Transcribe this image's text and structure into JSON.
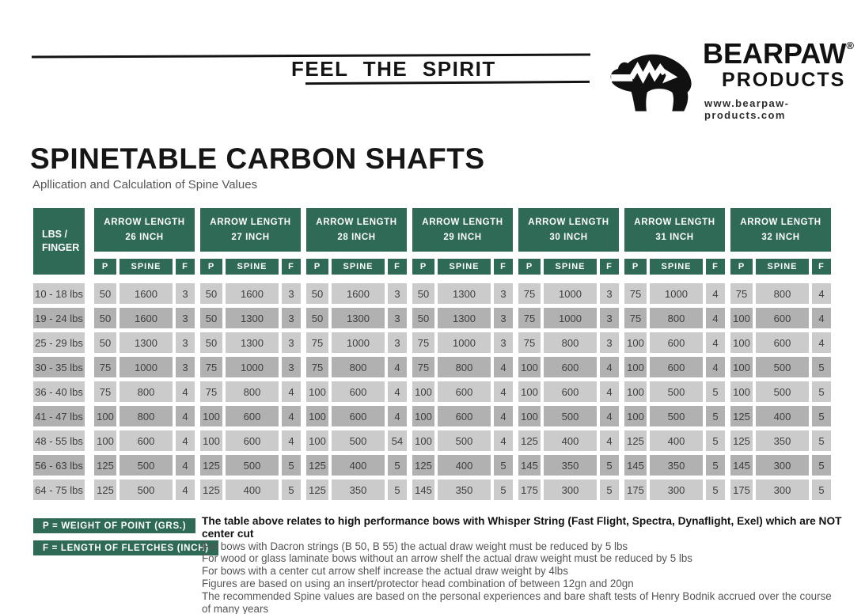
{
  "header": {
    "tagline": "FEEL THE SPIRIT",
    "brand": {
      "name": "BEARPAW",
      "registered": "®",
      "sub": "PRODUCTS",
      "website": "www.bearpaw-products.com"
    }
  },
  "title": "SPINETABLE CARBON SHAFTS",
  "subtitle": "Apllication and Calculation of Spine Values",
  "table": {
    "row_header_lines": [
      "LBS /",
      "FINGER"
    ],
    "group_header_prefix": "ARROW LENGTH",
    "groups": [
      "26 INCH",
      "27 INCH",
      "28 INCH",
      "29 INCH",
      "30 INCH",
      "31 INCH",
      "32 INCH"
    ],
    "sub_headers": [
      "P",
      "SPINE",
      "F"
    ],
    "rows": [
      {
        "label": "10 - 18 lbs",
        "cells": [
          [
            "50",
            "1600",
            "3"
          ],
          [
            "50",
            "1600",
            "3"
          ],
          [
            "50",
            "1600",
            "3"
          ],
          [
            "50",
            "1300",
            "3"
          ],
          [
            "75",
            "1000",
            "3"
          ],
          [
            "75",
            "1000",
            "4"
          ],
          [
            "75",
            "800",
            "4"
          ]
        ]
      },
      {
        "label": "19 - 24 lbs",
        "cells": [
          [
            "50",
            "1600",
            "3"
          ],
          [
            "50",
            "1300",
            "3"
          ],
          [
            "50",
            "1300",
            "3"
          ],
          [
            "50",
            "1300",
            "3"
          ],
          [
            "75",
            "1000",
            "3"
          ],
          [
            "75",
            "800",
            "4"
          ],
          [
            "100",
            "600",
            "4"
          ]
        ]
      },
      {
        "label": "25 - 29 lbs",
        "cells": [
          [
            "50",
            "1300",
            "3"
          ],
          [
            "50",
            "1300",
            "3"
          ],
          [
            "75",
            "1000",
            "3"
          ],
          [
            "75",
            "1000",
            "3"
          ],
          [
            "75",
            "800",
            "3"
          ],
          [
            "100",
            "600",
            "4"
          ],
          [
            "100",
            "600",
            "4"
          ]
        ]
      },
      {
        "label": "30 - 35 lbs",
        "cells": [
          [
            "75",
            "1000",
            "3"
          ],
          [
            "75",
            "1000",
            "3"
          ],
          [
            "75",
            "800",
            "4"
          ],
          [
            "75",
            "800",
            "4"
          ],
          [
            "100",
            "600",
            "4"
          ],
          [
            "100",
            "600",
            "4"
          ],
          [
            "100",
            "500",
            "5"
          ]
        ]
      },
      {
        "label": "36 - 40 lbs",
        "cells": [
          [
            "75",
            "800",
            "4"
          ],
          [
            "75",
            "800",
            "4"
          ],
          [
            "100",
            "600",
            "4"
          ],
          [
            "100",
            "600",
            "4"
          ],
          [
            "100",
            "600",
            "4"
          ],
          [
            "100",
            "500",
            "5"
          ],
          [
            "100",
            "500",
            "5"
          ]
        ]
      },
      {
        "label": "41 - 47 lbs",
        "cells": [
          [
            "100",
            "800",
            "4"
          ],
          [
            "100",
            "600",
            "4"
          ],
          [
            "100",
            "600",
            "4"
          ],
          [
            "100",
            "600",
            "4"
          ],
          [
            "100",
            "500",
            "4"
          ],
          [
            "100",
            "500",
            "5"
          ],
          [
            "125",
            "400",
            "5"
          ]
        ]
      },
      {
        "label": "48 - 55 lbs",
        "cells": [
          [
            "100",
            "600",
            "4"
          ],
          [
            "100",
            "600",
            "4"
          ],
          [
            "100",
            "500",
            "54"
          ],
          [
            "100",
            "500",
            "4"
          ],
          [
            "125",
            "400",
            "4"
          ],
          [
            "125",
            "400",
            "5"
          ],
          [
            "125",
            "350",
            "5"
          ]
        ]
      },
      {
        "label": "56 - 63 lbs",
        "cells": [
          [
            "125",
            "500",
            "4"
          ],
          [
            "125",
            "500",
            "5"
          ],
          [
            "125",
            "400",
            "5"
          ],
          [
            "125",
            "400",
            "5"
          ],
          [
            "145",
            "350",
            "5"
          ],
          [
            "145",
            "350",
            "5"
          ],
          [
            "145",
            "300",
            "5"
          ]
        ]
      },
      {
        "label": "64 - 75 lbs",
        "cells": [
          [
            "125",
            "500",
            "4"
          ],
          [
            "125",
            "400",
            "5"
          ],
          [
            "125",
            "350",
            "5"
          ],
          [
            "145",
            "350",
            "5"
          ],
          [
            "175",
            "300",
            "5"
          ],
          [
            "175",
            "300",
            "5"
          ],
          [
            "175",
            "300",
            "5"
          ]
        ]
      }
    ]
  },
  "legend": {
    "items": [
      "P = WEIGHT OF POINT (GRS.)",
      "F = LENGTH OF FLETCHES (INCH)"
    ]
  },
  "notes": {
    "headline": "The table above relates to high performance bows with Whisper String (Fast Flight, Spectra, Dynaflight, Exel) which are NOT center cut",
    "lines": [
      "For bows with Dacron strings (B 50, B 55) the actual draw weight must be reduced by 5 lbs",
      "For wood or glass laminate bows without an arrow shelf the actual draw weight must be reduced by 5 lbs",
      "For bows with a center cut arrow shelf increase the actual draw weight by 4lbs",
      "Figures are based on using an insert/protector head combination of between 12gn and 20gn",
      "The recommended Spine values are based on the personal experiences and bare shaft tests of Henry Bodnik accrued over the course of many years"
    ]
  },
  "colors": {
    "green": "#2e6a55",
    "row_light": "#cbcbcb",
    "row_dark": "#b1b1b1",
    "ink": "#141414"
  }
}
